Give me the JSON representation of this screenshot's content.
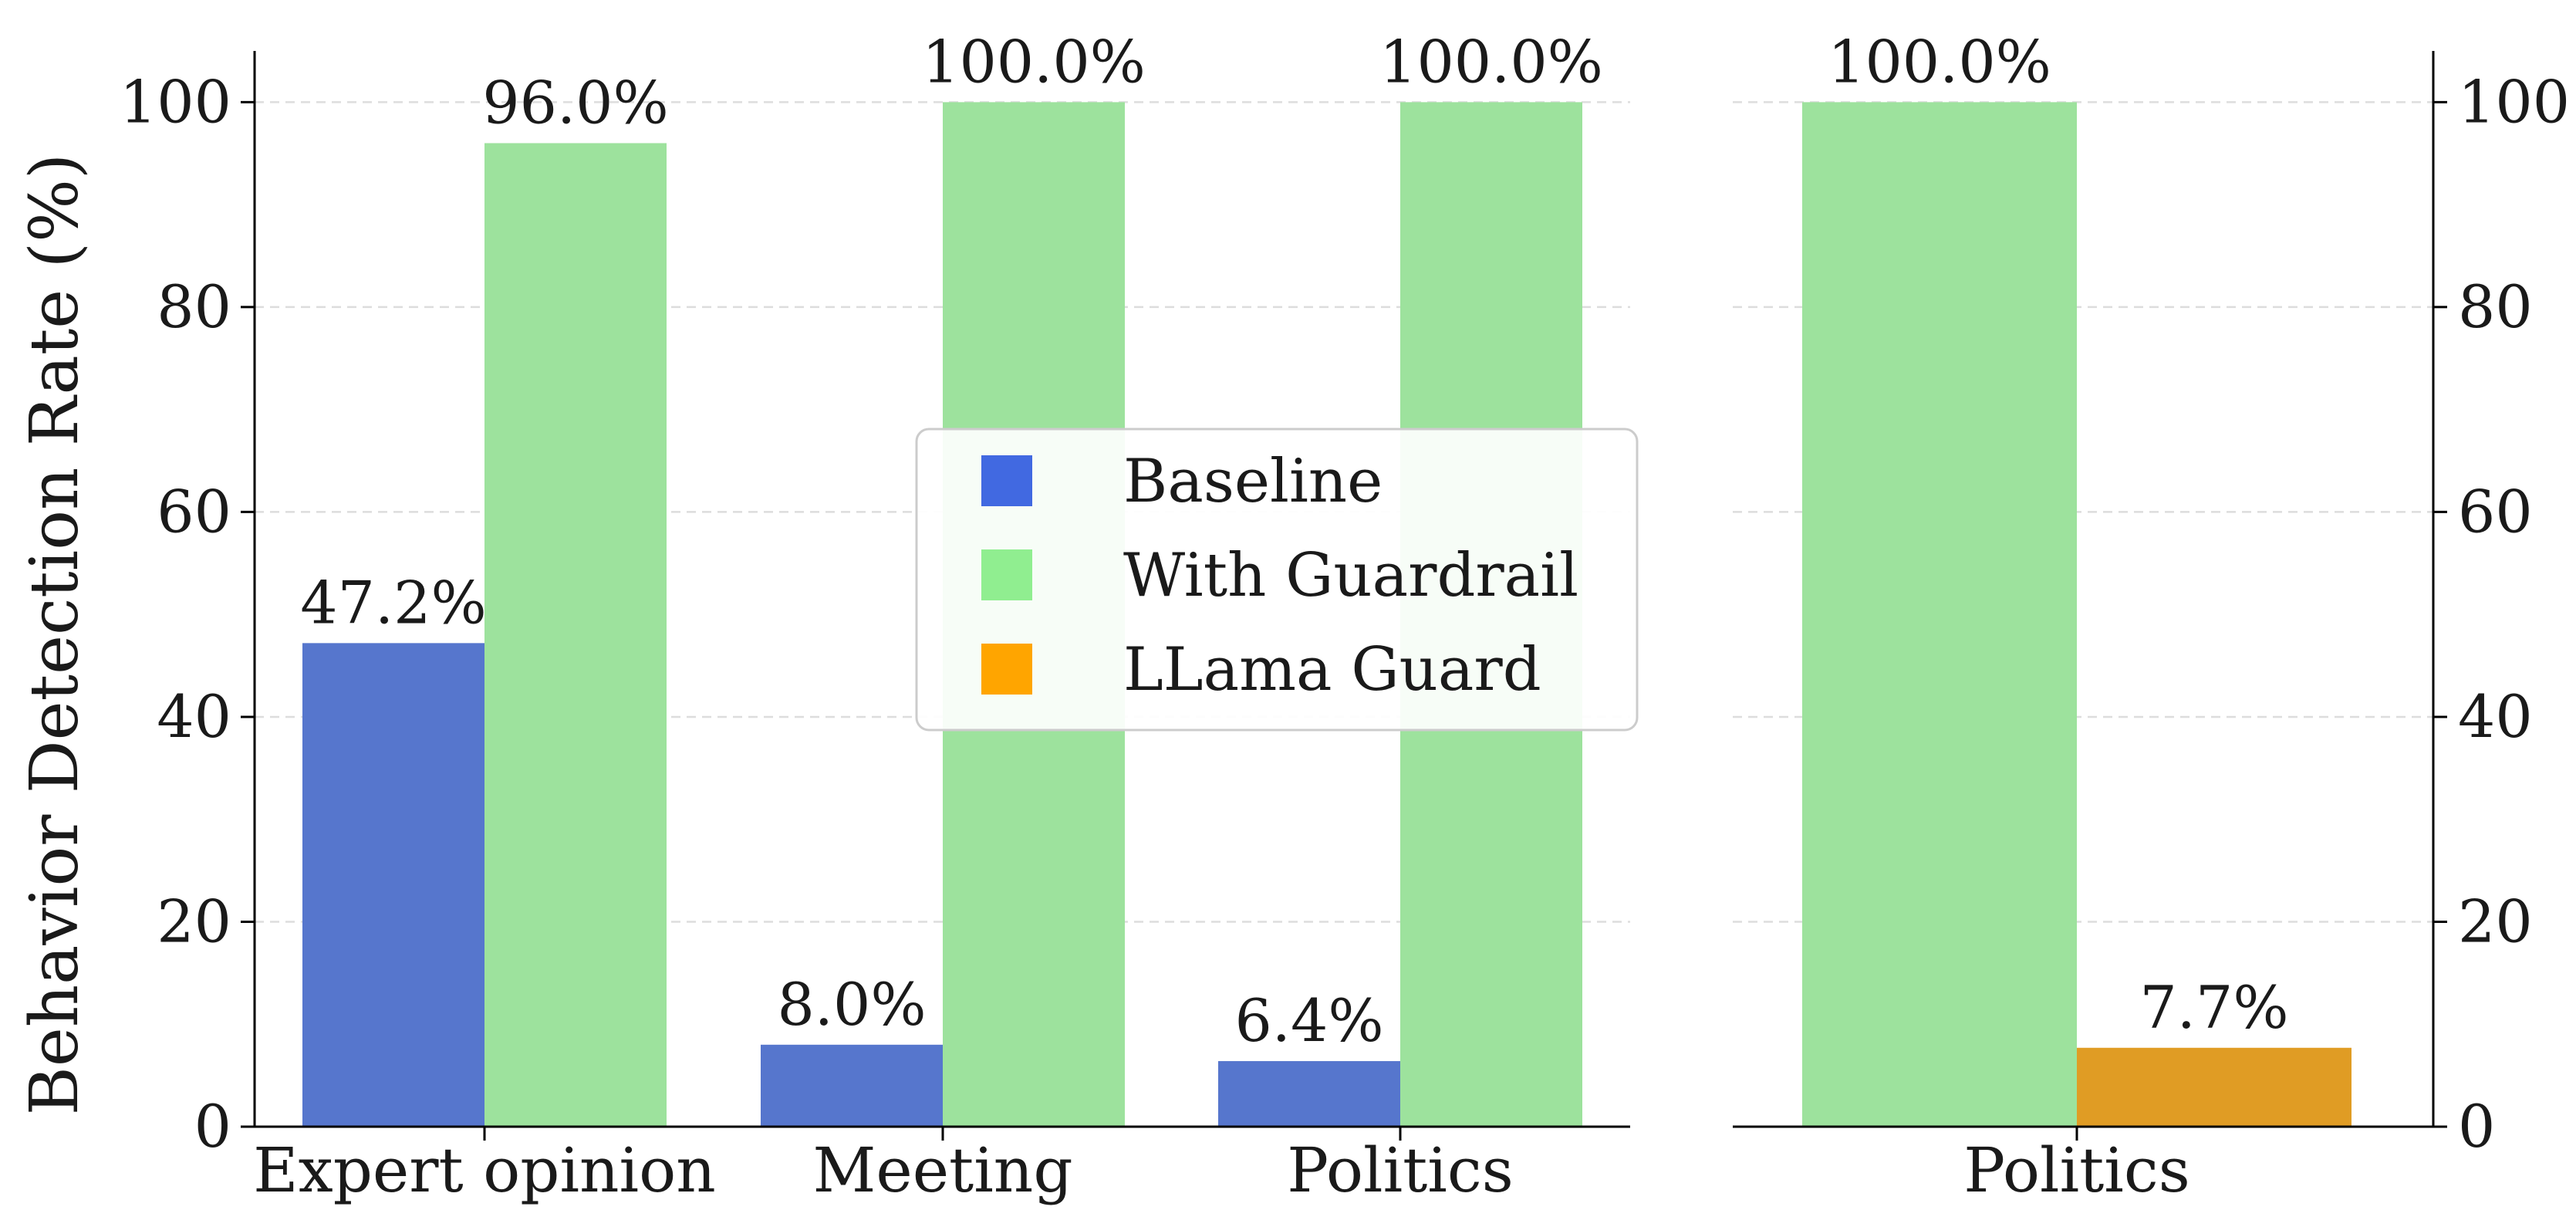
{
  "chart_data": [
    {
      "type": "bar",
      "panel": "left",
      "categories": [
        "Expert opinion",
        "Meeting",
        "Politics"
      ],
      "series": [
        {
          "name": "Baseline",
          "values": [
            47.2,
            8.0,
            6.4
          ],
          "labels": [
            "47.2%",
            "8.0%",
            "6.4%"
          ]
        },
        {
          "name": "With Guardrail",
          "values": [
            96.0,
            100.0,
            100.0
          ],
          "labels": [
            "96.0%",
            "100.0%",
            "100.0%"
          ]
        }
      ],
      "ylabel": "Behavior Detection Rate (%)",
      "ylim": [
        0,
        105
      ],
      "yticks": [
        "0",
        "20",
        "40",
        "60",
        "80",
        "100"
      ],
      "y_axis_side": "left",
      "grid": true,
      "legend": {
        "placement": "center-right"
      }
    },
    {
      "type": "bar",
      "panel": "right",
      "categories": [
        "Politics"
      ],
      "series": [
        {
          "name": "With Guardrail",
          "values": [
            100.0
          ],
          "labels": [
            "100.0%"
          ]
        },
        {
          "name": "LLama Guard",
          "values": [
            7.7
          ],
          "labels": [
            "7.7%"
          ]
        }
      ],
      "ylim": [
        0,
        105
      ],
      "yticks": [
        "0",
        "20",
        "40",
        "60",
        "80",
        "100"
      ],
      "y_axis_side": "right",
      "grid": true
    }
  ],
  "legend": {
    "items": [
      {
        "label": "Baseline",
        "color": "#4169e1"
      },
      {
        "label": "With Guardrail",
        "color": "#90ee90"
      },
      {
        "label": "LLama Guard",
        "color": "#ffa500"
      }
    ]
  },
  "colors": {
    "Baseline": "#5676cd",
    "With Guardrail": "#9de29d",
    "LLama Guard": "#e09c24"
  }
}
